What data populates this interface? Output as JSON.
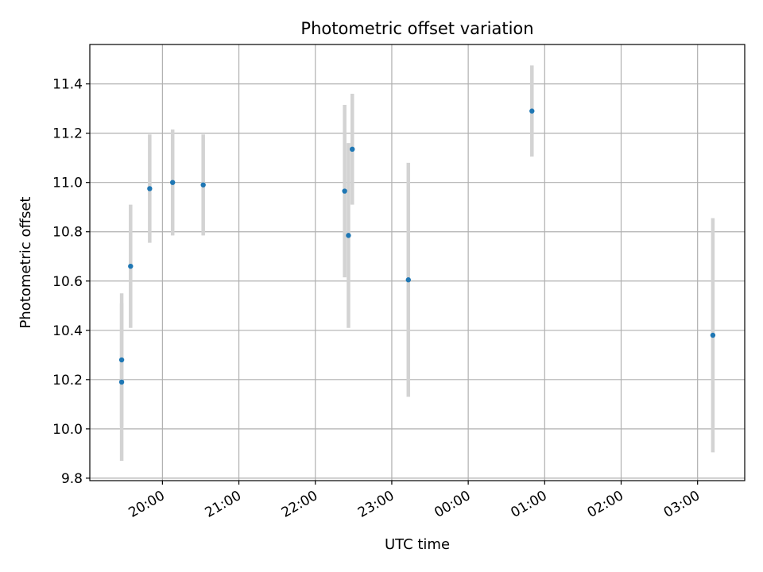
{
  "chart_data": {
    "type": "scatter",
    "title": "Photometric offset variation",
    "xlabel": "UTC time",
    "ylabel": "Photometric offset",
    "grid": true,
    "legend": "none",
    "xlim": [
      "19:03",
      "03:37"
    ],
    "ylim": [
      9.79,
      11.56
    ],
    "x_ticks": [
      "20:00",
      "21:00",
      "22:00",
      "23:00",
      "00:00",
      "01:00",
      "02:00",
      "03:00"
    ],
    "y_ticks": [
      "9.8",
      "10.0",
      "10.2",
      "10.4",
      "10.6",
      "10.8",
      "11.0",
      "11.2",
      "11.4"
    ],
    "marker_color": "#1f77b4",
    "errorbar_color": "#d3d3d3",
    "points": [
      {
        "time": "19:28",
        "y": 10.28,
        "err": 0.27
      },
      {
        "time": "19:28",
        "y": 10.19,
        "err": 0.32
      },
      {
        "time": "19:35",
        "y": 10.66,
        "err": 0.25
      },
      {
        "time": "19:50",
        "y": 10.975,
        "err": 0.22
      },
      {
        "time": "20:08",
        "y": 11.0,
        "err": 0.215
      },
      {
        "time": "20:32",
        "y": 10.99,
        "err": 0.205
      },
      {
        "time": "22:23",
        "y": 10.965,
        "err": 0.35
      },
      {
        "time": "22:26",
        "y": 10.785,
        "err": 0.375
      },
      {
        "time": "22:29",
        "y": 11.135,
        "err": 0.225
      },
      {
        "time": "23:13",
        "y": 10.605,
        "err": 0.475
      },
      {
        "time": "00:50",
        "y": 11.29,
        "err": 0.185
      },
      {
        "time": "03:12",
        "y": 10.38,
        "err": 0.475
      }
    ]
  }
}
